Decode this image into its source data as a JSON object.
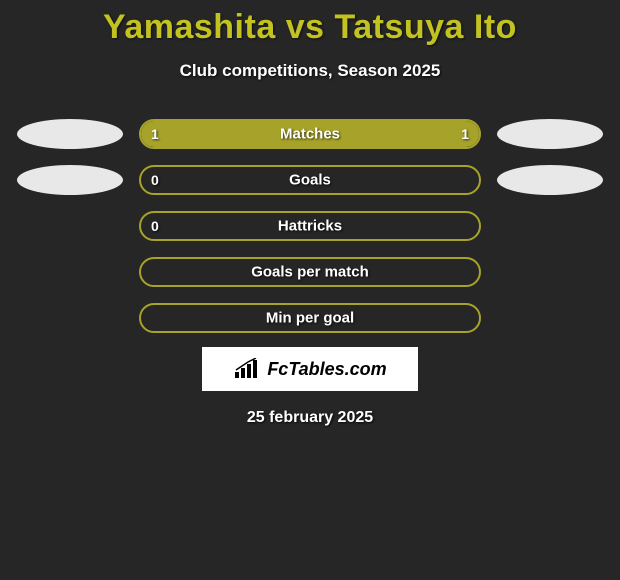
{
  "title": {
    "player1": "Yamashita",
    "vs": "vs",
    "player2": "Tatsuya Ito",
    "player1_color": "#c2c220",
    "player2_color": "#c2c220"
  },
  "subtitle": "Club competitions, Season 2025",
  "colors": {
    "background": "#262626",
    "bar_border": "#a7a32a",
    "bar_fill": "#a7a32a",
    "ellipse": "#e8e8e8",
    "text": "#ffffff"
  },
  "stats": [
    {
      "label": "Matches",
      "left_value": "1",
      "right_value": "1",
      "left_pct": 50,
      "right_pct": 50,
      "left_fill": "#a7a32a",
      "right_fill": "#a7a32a",
      "show_left_ellipse": true,
      "show_right_ellipse": true,
      "full_fill": true
    },
    {
      "label": "Goals",
      "left_value": "0",
      "right_value": "",
      "left_pct": 0,
      "right_pct": 0,
      "show_left_ellipse": true,
      "show_right_ellipse": true,
      "full_fill": false
    },
    {
      "label": "Hattricks",
      "left_value": "0",
      "right_value": "",
      "left_pct": 0,
      "right_pct": 0,
      "show_left_ellipse": false,
      "show_right_ellipse": false,
      "full_fill": false
    },
    {
      "label": "Goals per match",
      "left_value": "",
      "right_value": "",
      "left_pct": 0,
      "right_pct": 0,
      "show_left_ellipse": false,
      "show_right_ellipse": false,
      "full_fill": false
    },
    {
      "label": "Min per goal",
      "left_value": "",
      "right_value": "",
      "left_pct": 0,
      "right_pct": 0,
      "show_left_ellipse": false,
      "show_right_ellipse": false,
      "full_fill": false
    }
  ],
  "logo": {
    "text": "FcTables.com"
  },
  "date": "25 february 2025"
}
